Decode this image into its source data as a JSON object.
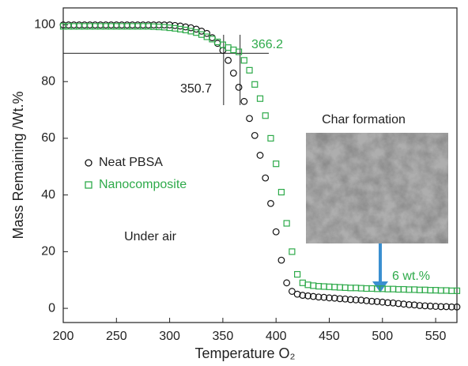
{
  "chart_data": {
    "type": "scatter",
    "xlabel": "Temperature O₂",
    "ylabel": "Mass Remaining /Wt.%",
    "xlim": [
      200,
      570
    ],
    "ylim": [
      -5,
      106
    ],
    "xticks": [
      200,
      250,
      300,
      350,
      400,
      450,
      500,
      550
    ],
    "yticks": [
      0,
      20,
      40,
      60,
      80,
      100
    ],
    "x": [
      200,
      205,
      210,
      215,
      220,
      225,
      230,
      235,
      240,
      245,
      250,
      255,
      260,
      265,
      270,
      275,
      280,
      285,
      290,
      295,
      300,
      305,
      310,
      315,
      320,
      325,
      330,
      335,
      340,
      345,
      350,
      355,
      360,
      365,
      370,
      375,
      380,
      385,
      390,
      395,
      400,
      405,
      410,
      415,
      420,
      425,
      430,
      435,
      440,
      445,
      450,
      455,
      460,
      465,
      470,
      475,
      480,
      485,
      490,
      495,
      500,
      505,
      510,
      515,
      520,
      525,
      530,
      535,
      540,
      545,
      550,
      555,
      560,
      565,
      570
    ],
    "series": [
      {
        "name": "Neat PBSA",
        "color": "#111111",
        "marker": "circle",
        "values": [
          100,
          100,
          100,
          100,
          100,
          100,
          100,
          100,
          100,
          100,
          100,
          100,
          100,
          100,
          100,
          100,
          100,
          100,
          100,
          100,
          100,
          99.8,
          99.6,
          99.3,
          99,
          98.5,
          97.8,
          97,
          95.5,
          93.5,
          91,
          87.5,
          83,
          78,
          73,
          67,
          61,
          54,
          46,
          37,
          27,
          17,
          9,
          6,
          5,
          4.6,
          4.4,
          4.2,
          4,
          3.9,
          3.7,
          3.6,
          3.4,
          3.3,
          3.1,
          3,
          2.9,
          2.7,
          2.5,
          2.4,
          2.2,
          2,
          1.9,
          1.7,
          1.5,
          1.3,
          1.2,
          1,
          0.9,
          0.8,
          0.7,
          0.6,
          0.6,
          0.5,
          0.5
        ]
      },
      {
        "name": "Nanocomposite",
        "color": "#2eaa4a",
        "marker": "square",
        "values": [
          99.5,
          99.5,
          99.5,
          99.5,
          99.5,
          99.5,
          99.5,
          99.5,
          99.5,
          99.5,
          99.5,
          99.5,
          99.5,
          99.5,
          99.5,
          99.5,
          99.5,
          99.4,
          99.3,
          99.2,
          99,
          98.8,
          98.5,
          98.2,
          97.8,
          97.3,
          96.6,
          95.8,
          95,
          94,
          93,
          92,
          91.2,
          90.5,
          87.5,
          84,
          79,
          74,
          68,
          60,
          51,
          41,
          30,
          20,
          12,
          9,
          8.3,
          8,
          7.8,
          7.7,
          7.6,
          7.5,
          7.4,
          7.3,
          7.2,
          7.2,
          7.1,
          7,
          7,
          6.9,
          6.9,
          6.8,
          6.8,
          6.7,
          6.7,
          6.6,
          6.6,
          6.5,
          6.5,
          6.4,
          6.4,
          6.3,
          6.3,
          6.2,
          6.2
        ]
      }
    ],
    "reference_x": [
      350.7,
      366.2
    ],
    "reference_y": 90,
    "annotations": [
      "Char formation",
      "Under air",
      "6 wt.%"
    ]
  }
}
